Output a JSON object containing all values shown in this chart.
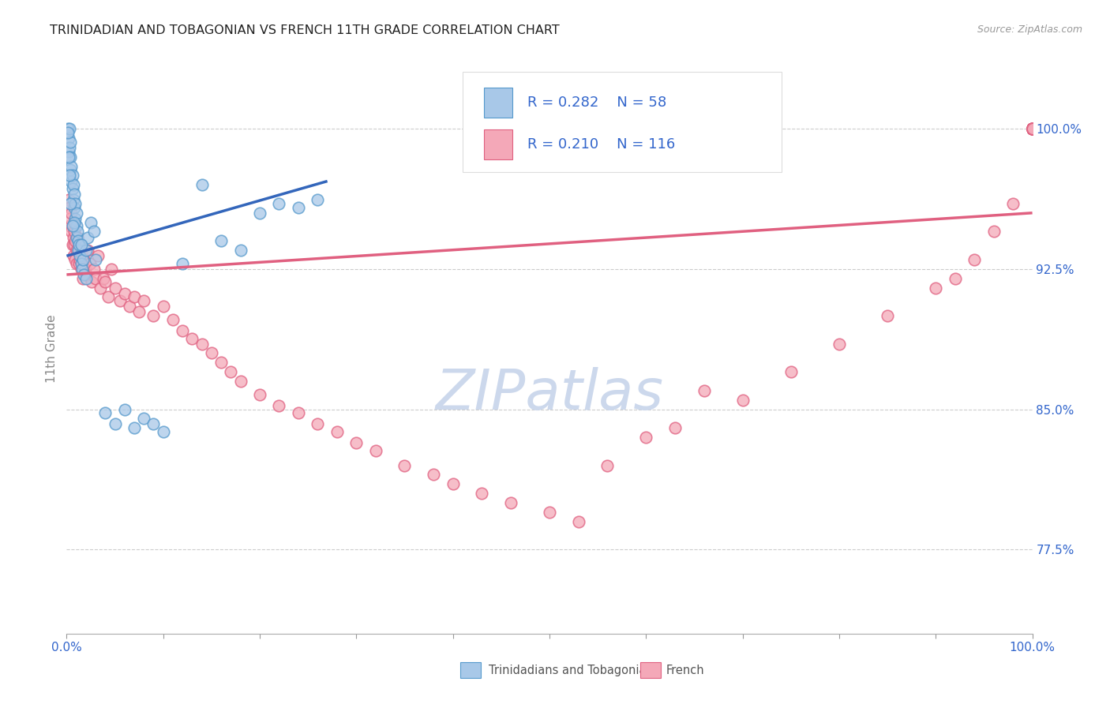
{
  "title": "TRINIDADIAN AND TOBAGONIAN VS FRENCH 11TH GRADE CORRELATION CHART",
  "source": "Source: ZipAtlas.com",
  "ylabel": "11th Grade",
  "y_ticks": [
    77.5,
    85.0,
    92.5,
    100.0
  ],
  "y_tick_labels": [
    "77.5%",
    "85.0%",
    "92.5%",
    "100.0%"
  ],
  "ylim_min": 73.0,
  "ylim_max": 103.5,
  "xlim_min": 0.0,
  "xlim_max": 1.0,
  "legend_blue_label": "R = 0.282    N = 58",
  "legend_pink_label": "R = 0.210    N = 116",
  "legend_label_blue": "Trinidadians and Tobagonians",
  "legend_label_pink": "French",
  "blue_face_color": "#a8c8e8",
  "pink_face_color": "#f4a8b8",
  "blue_edge_color": "#5599cc",
  "pink_edge_color": "#e06080",
  "blue_line_color": "#3366bb",
  "pink_line_color": "#e06080",
  "legend_text_color": "#3366cc",
  "axis_tick_color": "#3366cc",
  "title_color": "#222222",
  "grid_color": "#cccccc",
  "watermark_color": "#ccd8ec",
  "blue_line_x": [
    0.0,
    0.27
  ],
  "blue_line_y": [
    93.2,
    97.2
  ],
  "pink_line_x": [
    0.0,
    1.0
  ],
  "pink_line_y": [
    92.2,
    95.5
  ],
  "blue_x": [
    0.001,
    0.002,
    0.002,
    0.003,
    0.003,
    0.004,
    0.004,
    0.004,
    0.005,
    0.005,
    0.006,
    0.006,
    0.007,
    0.007,
    0.008,
    0.008,
    0.009,
    0.009,
    0.01,
    0.01,
    0.01,
    0.011,
    0.012,
    0.012,
    0.013,
    0.014,
    0.015,
    0.016,
    0.017,
    0.018,
    0.02,
    0.022,
    0.025,
    0.028,
    0.03,
    0.04,
    0.05,
    0.06,
    0.07,
    0.08,
    0.09,
    0.1,
    0.12,
    0.14,
    0.16,
    0.18,
    0.2,
    0.22,
    0.24,
    0.26,
    0.02,
    0.015,
    0.008,
    0.006,
    0.004,
    0.003,
    0.002,
    0.001
  ],
  "blue_y": [
    100.0,
    99.5,
    98.8,
    100.0,
    99.0,
    99.3,
    98.5,
    97.8,
    98.0,
    97.2,
    97.5,
    96.8,
    97.0,
    96.2,
    96.5,
    95.8,
    96.0,
    95.2,
    95.5,
    94.8,
    94.2,
    94.5,
    94.0,
    93.5,
    93.8,
    93.2,
    92.8,
    92.5,
    93.0,
    92.2,
    93.5,
    94.2,
    95.0,
    94.5,
    93.0,
    84.8,
    84.2,
    85.0,
    84.0,
    84.5,
    84.2,
    83.8,
    92.8,
    97.0,
    94.0,
    93.5,
    95.5,
    96.0,
    95.8,
    96.2,
    92.0,
    93.8,
    95.0,
    94.8,
    96.0,
    97.5,
    98.5,
    99.8
  ],
  "pink_x": [
    0.002,
    0.003,
    0.003,
    0.004,
    0.005,
    0.005,
    0.006,
    0.006,
    0.007,
    0.007,
    0.008,
    0.008,
    0.009,
    0.009,
    0.01,
    0.01,
    0.011,
    0.012,
    0.013,
    0.014,
    0.015,
    0.016,
    0.017,
    0.018,
    0.019,
    0.02,
    0.022,
    0.024,
    0.026,
    0.028,
    0.03,
    0.032,
    0.035,
    0.038,
    0.04,
    0.043,
    0.046,
    0.05,
    0.055,
    0.06,
    0.065,
    0.07,
    0.075,
    0.08,
    0.09,
    0.1,
    0.11,
    0.12,
    0.13,
    0.14,
    0.15,
    0.16,
    0.17,
    0.18,
    0.2,
    0.22,
    0.24,
    0.26,
    0.28,
    0.3,
    0.32,
    0.35,
    0.38,
    0.4,
    0.43,
    0.46,
    0.5,
    0.53,
    0.56,
    0.6,
    0.63,
    0.66,
    0.7,
    0.75,
    0.8,
    0.85,
    0.9,
    0.92,
    0.94,
    0.96,
    0.98,
    1.0,
    1.0,
    1.0,
    1.0,
    1.0,
    1.0,
    1.0,
    1.0,
    1.0,
    1.0,
    1.0,
    1.0,
    1.0,
    1.0,
    1.0,
    1.0,
    1.0,
    1.0,
    1.0,
    1.0,
    1.0,
    1.0,
    1.0,
    1.0,
    1.0,
    1.0,
    1.0,
    1.0,
    1.0,
    1.0,
    1.0,
    1.0,
    1.0,
    1.0,
    1.0
  ],
  "pink_y": [
    96.2,
    95.8,
    94.8,
    95.2,
    94.5,
    95.5,
    93.8,
    94.8,
    94.2,
    93.2,
    93.8,
    94.5,
    93.0,
    94.0,
    93.5,
    92.8,
    94.2,
    93.5,
    92.8,
    93.0,
    92.5,
    93.2,
    92.0,
    93.0,
    92.5,
    92.2,
    93.5,
    92.8,
    91.8,
    92.5,
    92.0,
    93.2,
    91.5,
    92.0,
    91.8,
    91.0,
    92.5,
    91.5,
    90.8,
    91.2,
    90.5,
    91.0,
    90.2,
    90.8,
    90.0,
    90.5,
    89.8,
    89.2,
    88.8,
    88.5,
    88.0,
    87.5,
    87.0,
    86.5,
    85.8,
    85.2,
    84.8,
    84.2,
    83.8,
    83.2,
    82.8,
    82.0,
    81.5,
    81.0,
    80.5,
    80.0,
    79.5,
    79.0,
    82.0,
    83.5,
    84.0,
    86.0,
    85.5,
    87.0,
    88.5,
    90.0,
    91.5,
    92.0,
    93.0,
    94.5,
    96.0,
    100.0,
    100.0,
    100.0,
    100.0,
    100.0,
    100.0,
    100.0,
    100.0,
    100.0,
    100.0,
    100.0,
    100.0,
    100.0,
    100.0,
    100.0,
    100.0,
    100.0,
    100.0,
    100.0,
    100.0,
    100.0,
    100.0,
    100.0,
    100.0,
    100.0,
    100.0,
    100.0,
    100.0,
    100.0,
    100.0,
    100.0,
    100.0,
    100.0,
    100.0,
    100.0
  ]
}
